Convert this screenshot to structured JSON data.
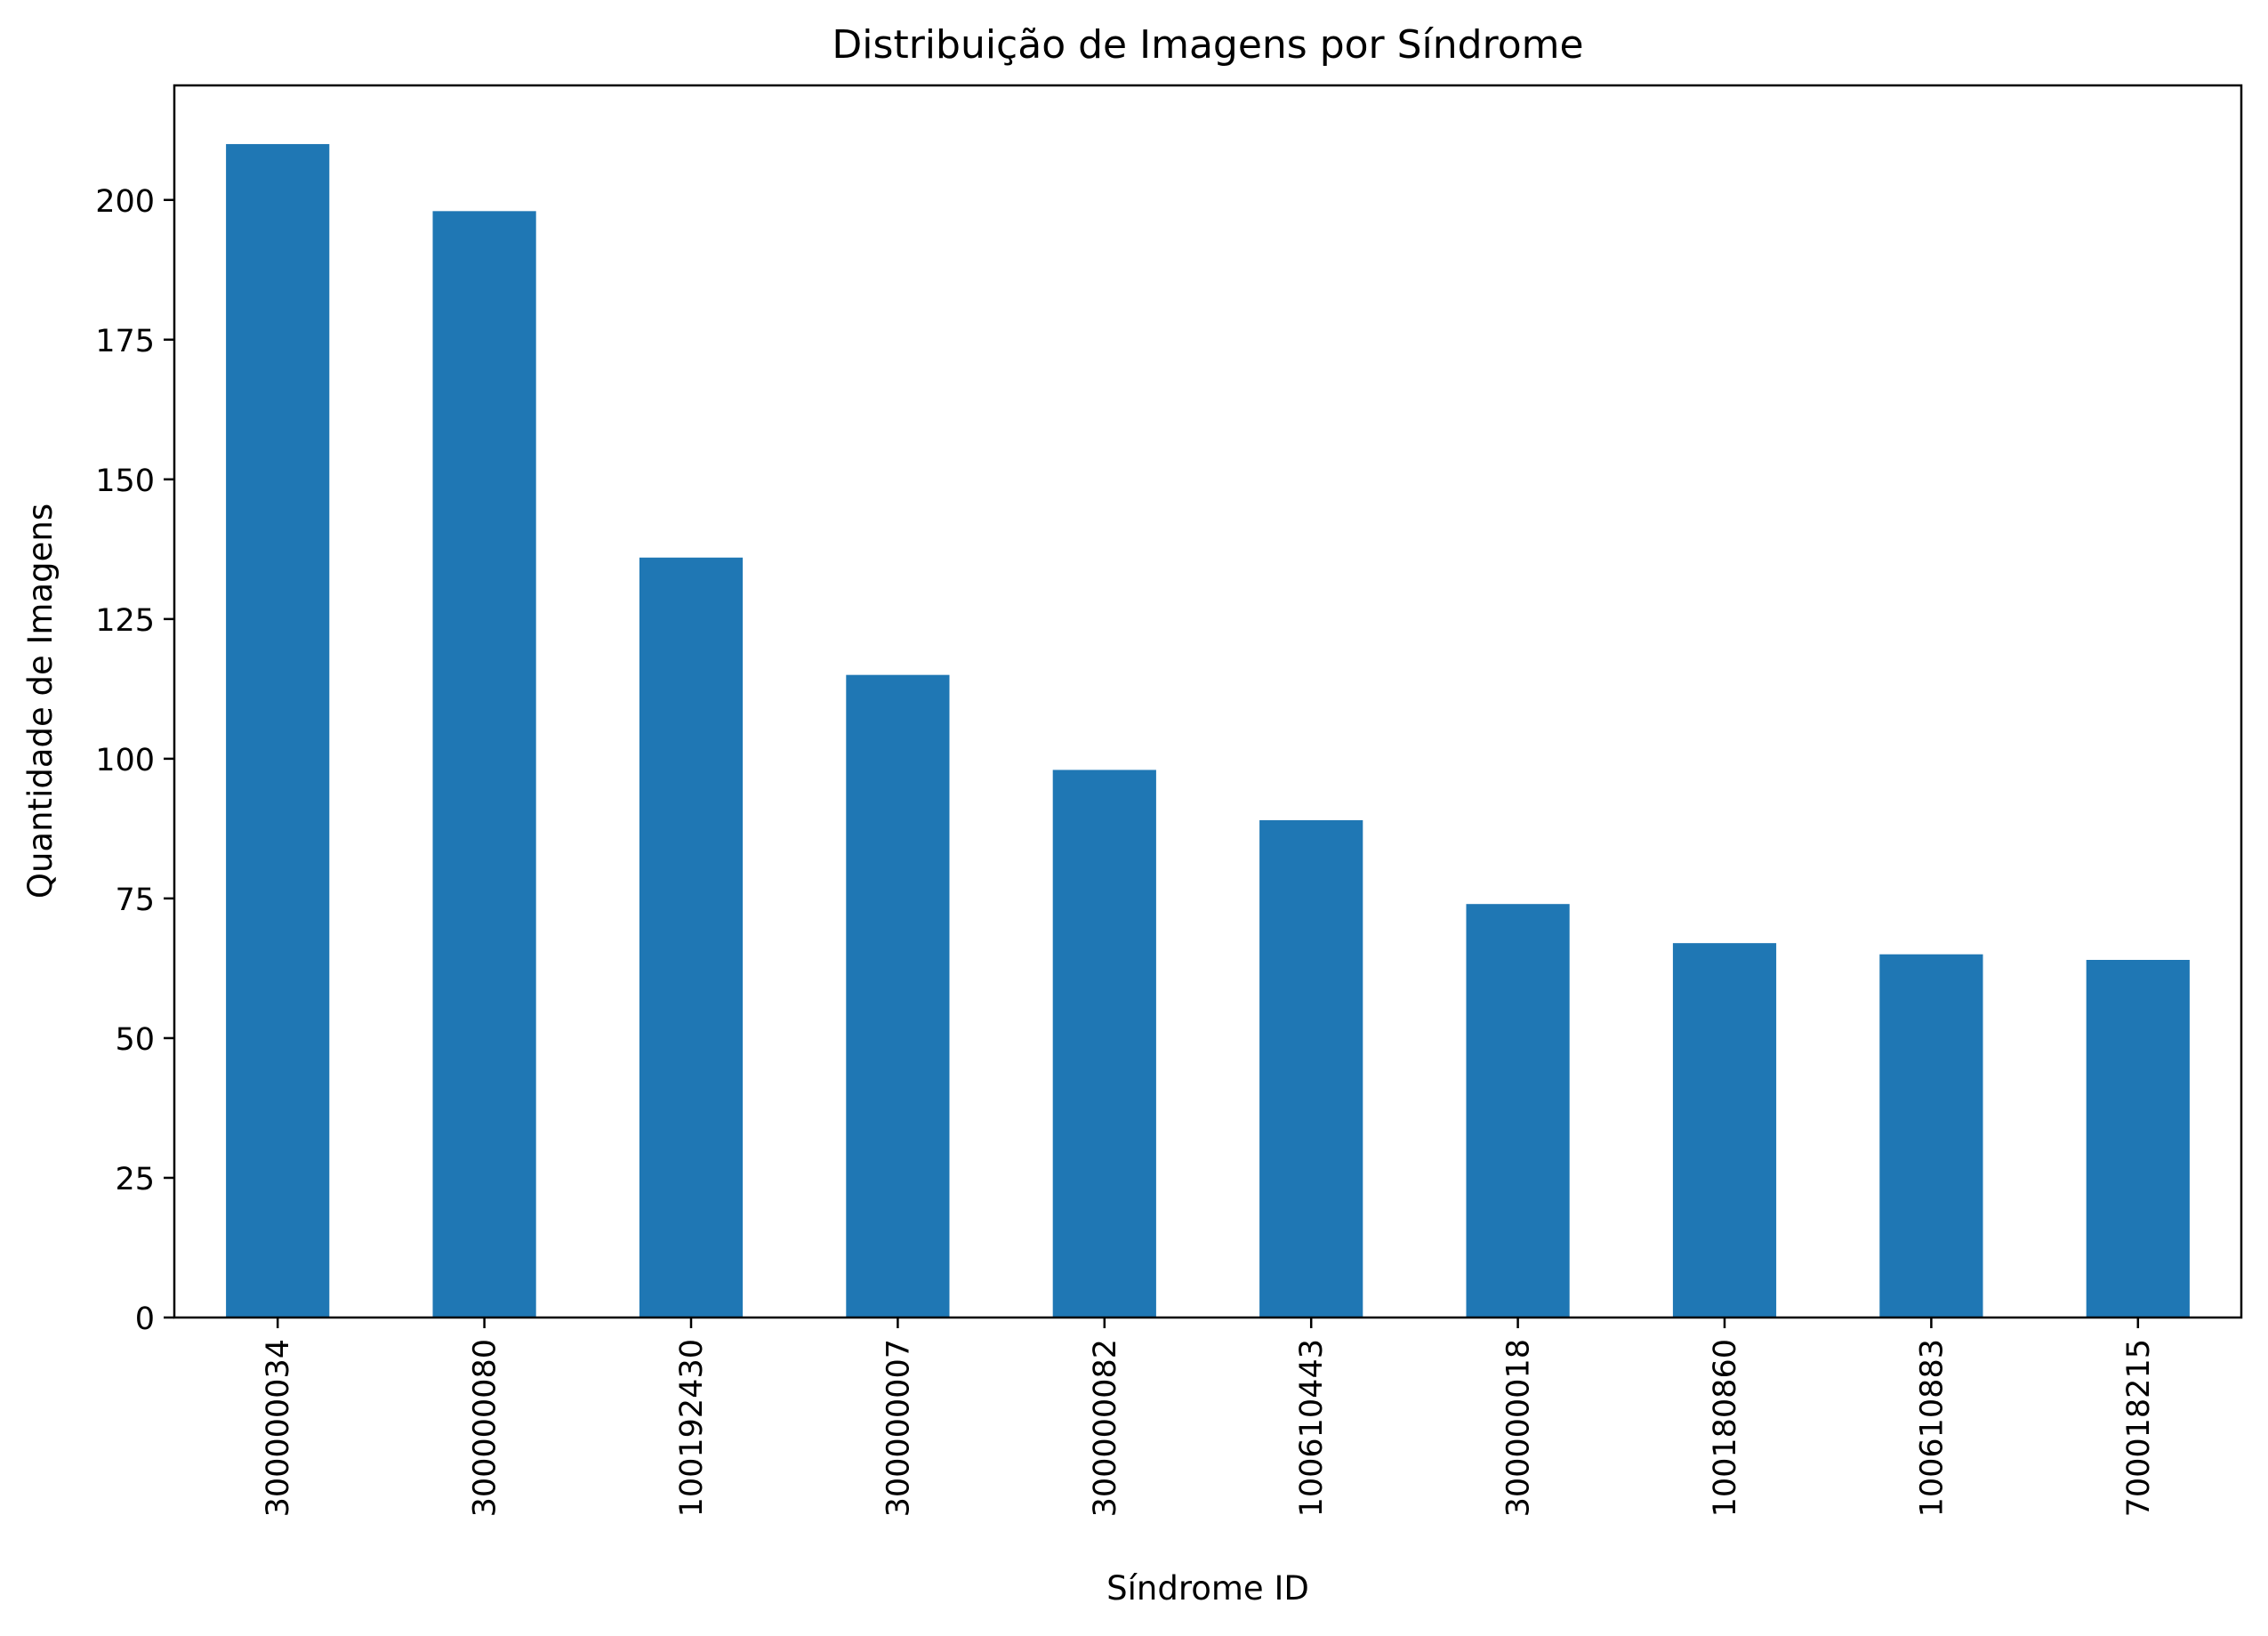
{
  "chart_data": {
    "type": "bar",
    "title": "Distribuição de Imagens por Síndrome",
    "xlabel": "Síndrome ID",
    "ylabel": "Quantidade de Imagens",
    "categories": [
      "300000034",
      "300000080",
      "100192430",
      "300000007",
      "300000082",
      "100610443",
      "300000018",
      "100180860",
      "100610883",
      "700018215"
    ],
    "values": [
      210,
      198,
      136,
      115,
      98,
      89,
      74,
      67,
      65,
      64
    ],
    "ylim": [
      0,
      220.5
    ],
    "yticks": [
      0,
      25,
      50,
      75,
      100,
      125,
      150,
      175,
      200
    ],
    "grid": false,
    "legend": "none",
    "bar_color": "#1f77b4"
  }
}
